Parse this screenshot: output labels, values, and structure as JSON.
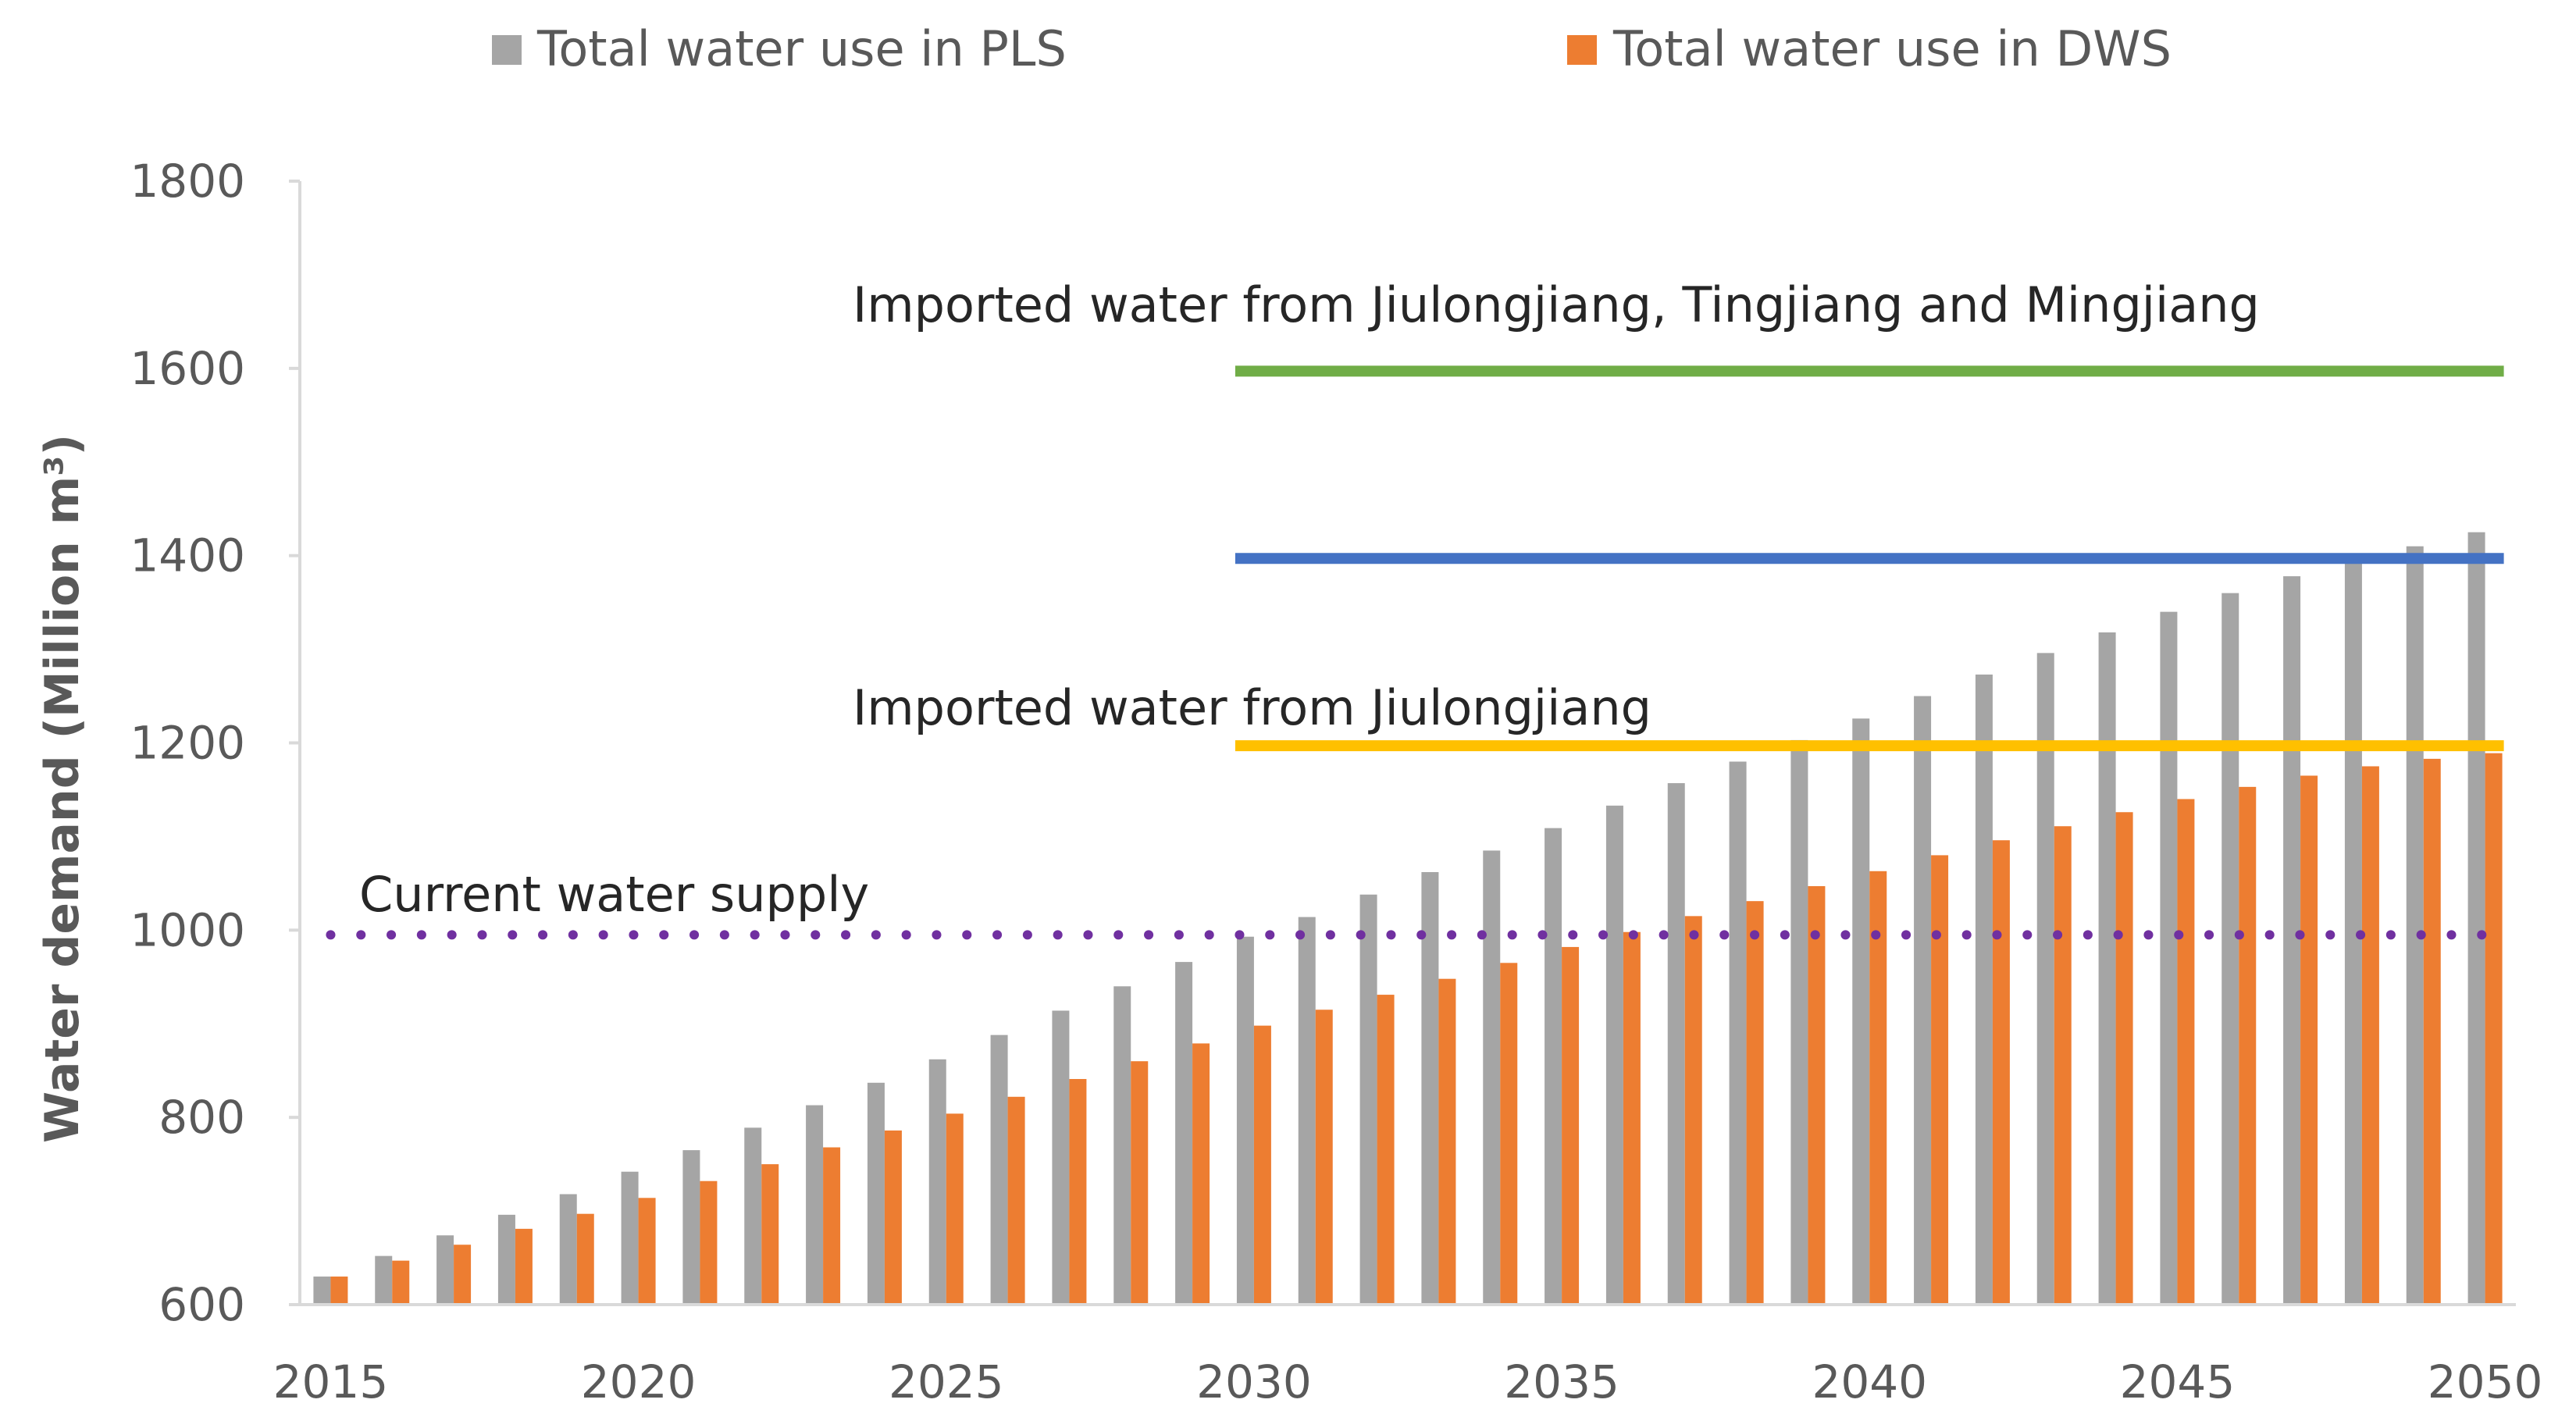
{
  "chart_data": {
    "type": "bar",
    "title": "",
    "xlabel": "",
    "ylabel": "Water demand (Million m³)",
    "ylim": [
      600,
      1800
    ],
    "yticks": [
      600,
      800,
      1000,
      1200,
      1400,
      1600,
      1800
    ],
    "xticks": [
      "2015",
      "2020",
      "2025",
      "2030",
      "2035",
      "2040",
      "2045",
      "2050"
    ],
    "legend_position": "top",
    "years": [
      2015,
      2016,
      2017,
      2018,
      2019,
      2020,
      2021,
      2022,
      2023,
      2024,
      2025,
      2026,
      2027,
      2028,
      2029,
      2030,
      2031,
      2032,
      2033,
      2034,
      2035,
      2036,
      2037,
      2038,
      2039,
      2040,
      2041,
      2042,
      2043,
      2044,
      2045,
      2046,
      2047,
      2048,
      2049,
      2050
    ],
    "series": [
      {
        "name": "Total water use in PLS",
        "color": "#A5A5A5",
        "values": [
          630,
          652,
          674,
          696,
          718,
          742,
          765,
          789,
          813,
          837,
          862,
          888,
          914,
          940,
          966,
          993,
          1014,
          1038,
          1062,
          1085,
          1109,
          1133,
          1157,
          1180,
          1203,
          1226,
          1250,
          1273,
          1296,
          1318,
          1340,
          1360,
          1378,
          1394,
          1410,
          1425
        ]
      },
      {
        "name": "Total water use in DWS",
        "color": "#ED7D31",
        "values": [
          630,
          647,
          664,
          681,
          697,
          714,
          732,
          750,
          768,
          786,
          804,
          822,
          841,
          860,
          879,
          898,
          915,
          931,
          948,
          965,
          982,
          998,
          1015,
          1031,
          1047,
          1063,
          1080,
          1096,
          1111,
          1126,
          1140,
          1153,
          1165,
          1175,
          1183,
          1189
        ]
      }
    ],
    "reference_lines": [
      {
        "name": "Current water supply",
        "value": 995,
        "from": 2015,
        "to": 2050,
        "style": "dotted",
        "color": "#7030A0"
      },
      {
        "name": "Imported water from Jiulongjiang",
        "value": 1197,
        "from": 2030,
        "to": 2050,
        "style": "solid",
        "color": "#FFC000"
      },
      {
        "name": "",
        "value": 1397,
        "from": 2030,
        "to": 2050,
        "style": "solid",
        "color": "#4472C4"
      },
      {
        "name": "Imported water from Jiulongjiang, Tingjiang and Mingjiang",
        "value": 1597,
        "from": 2030,
        "to": 2050,
        "style": "solid",
        "color": "#70AD47"
      }
    ]
  }
}
